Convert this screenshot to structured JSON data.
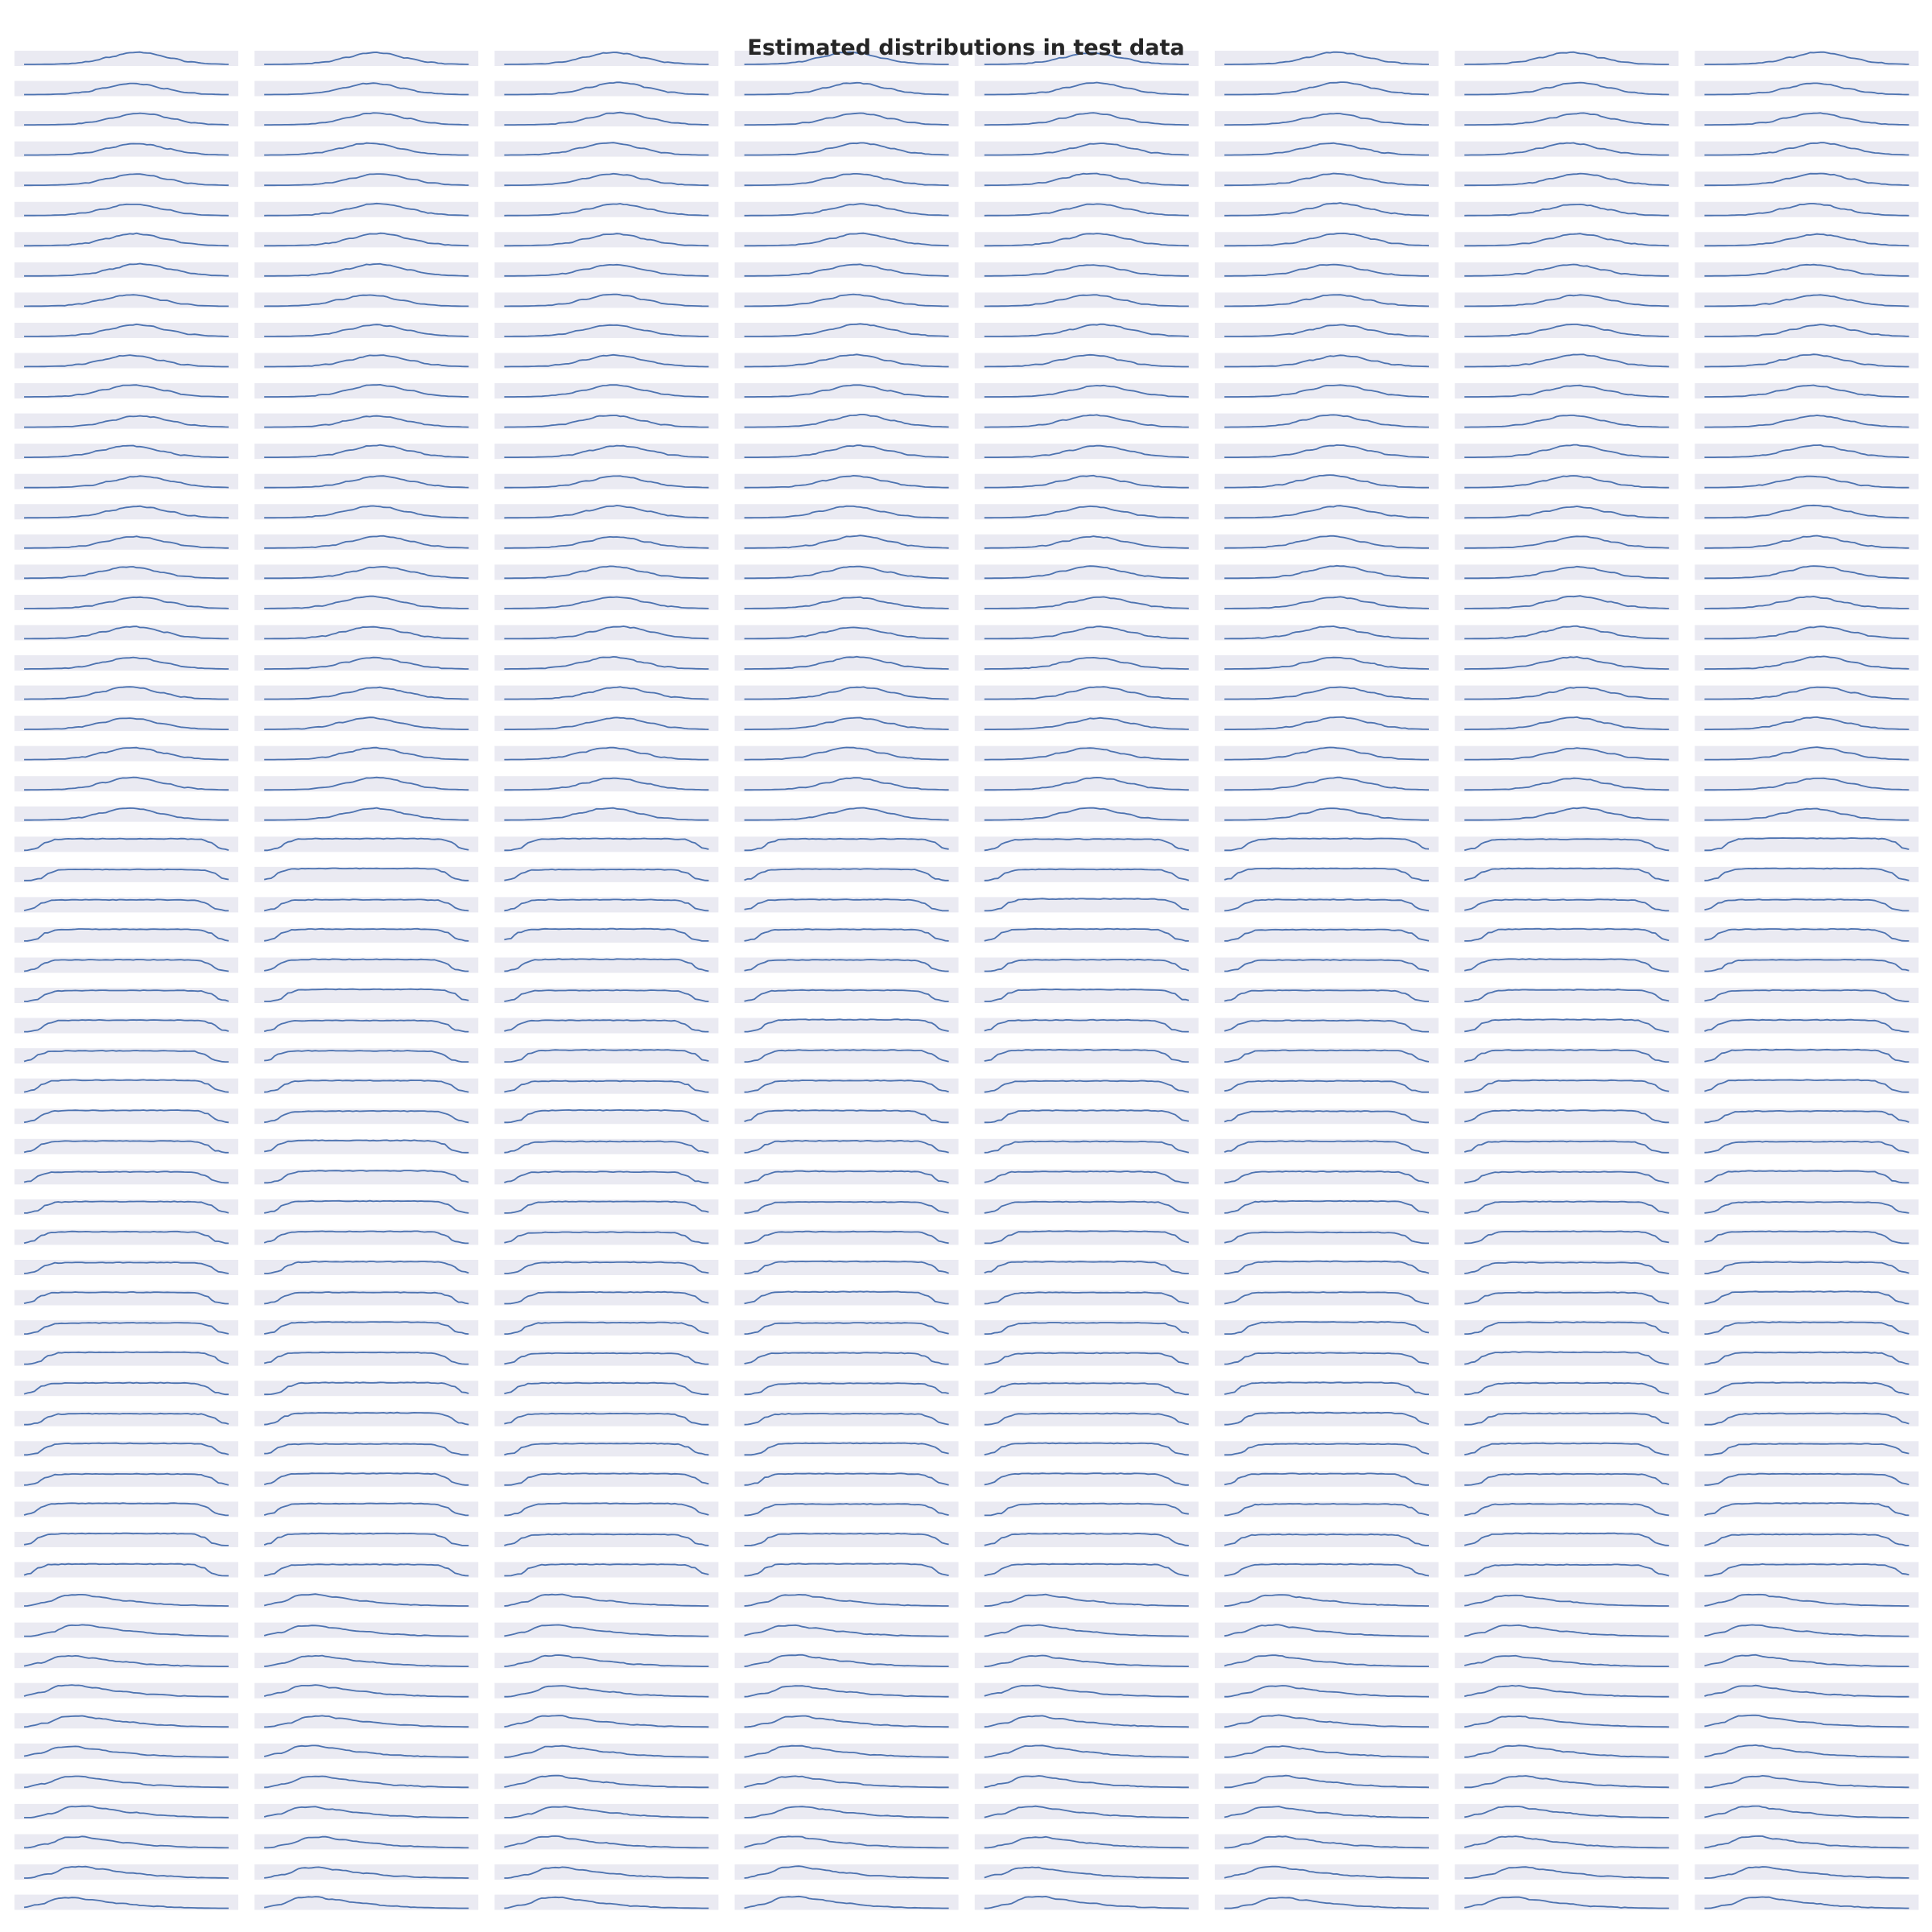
{
  "title": "Estimated distributions in test data",
  "colors": {
    "panel_background": "#eaeaf2",
    "curve": "#4c72b0",
    "title": "#262626"
  },
  "chart_data": {
    "type": "density-grid",
    "columns": 8,
    "rows": 62,
    "x_ticks_shown": false,
    "y_ticks_shown": false,
    "grid": false,
    "row_groups": [
      {
        "rows": 26,
        "distribution": "normal",
        "shape_points": [
          [
            0.0,
            0.0
          ],
          [
            0.1,
            0.01
          ],
          [
            0.2,
            0.05
          ],
          [
            0.3,
            0.2
          ],
          [
            0.4,
            0.55
          ],
          [
            0.5,
            0.9
          ],
          [
            0.55,
            0.95
          ],
          [
            0.6,
            0.85
          ],
          [
            0.7,
            0.5
          ],
          [
            0.8,
            0.18
          ],
          [
            0.9,
            0.04
          ],
          [
            1.0,
            0.0
          ]
        ]
      },
      {
        "rows": 25,
        "distribution": "uniform",
        "shape_points": [
          [
            0.0,
            0.0
          ],
          [
            0.05,
            0.15
          ],
          [
            0.1,
            0.65
          ],
          [
            0.15,
            0.88
          ],
          [
            0.25,
            0.92
          ],
          [
            0.5,
            0.92
          ],
          [
            0.75,
            0.92
          ],
          [
            0.85,
            0.88
          ],
          [
            0.9,
            0.65
          ],
          [
            0.95,
            0.15
          ],
          [
            1.0,
            0.0
          ]
        ]
      },
      {
        "rows": 11,
        "distribution": "skewed",
        "shape_points": [
          [
            0.0,
            0.0
          ],
          [
            0.1,
            0.3
          ],
          [
            0.2,
            0.85
          ],
          [
            0.28,
            0.9
          ],
          [
            0.35,
            0.7
          ],
          [
            0.5,
            0.4
          ],
          [
            0.65,
            0.17
          ],
          [
            0.8,
            0.06
          ],
          [
            0.9,
            0.02
          ],
          [
            1.0,
            0.0
          ]
        ]
      }
    ]
  }
}
